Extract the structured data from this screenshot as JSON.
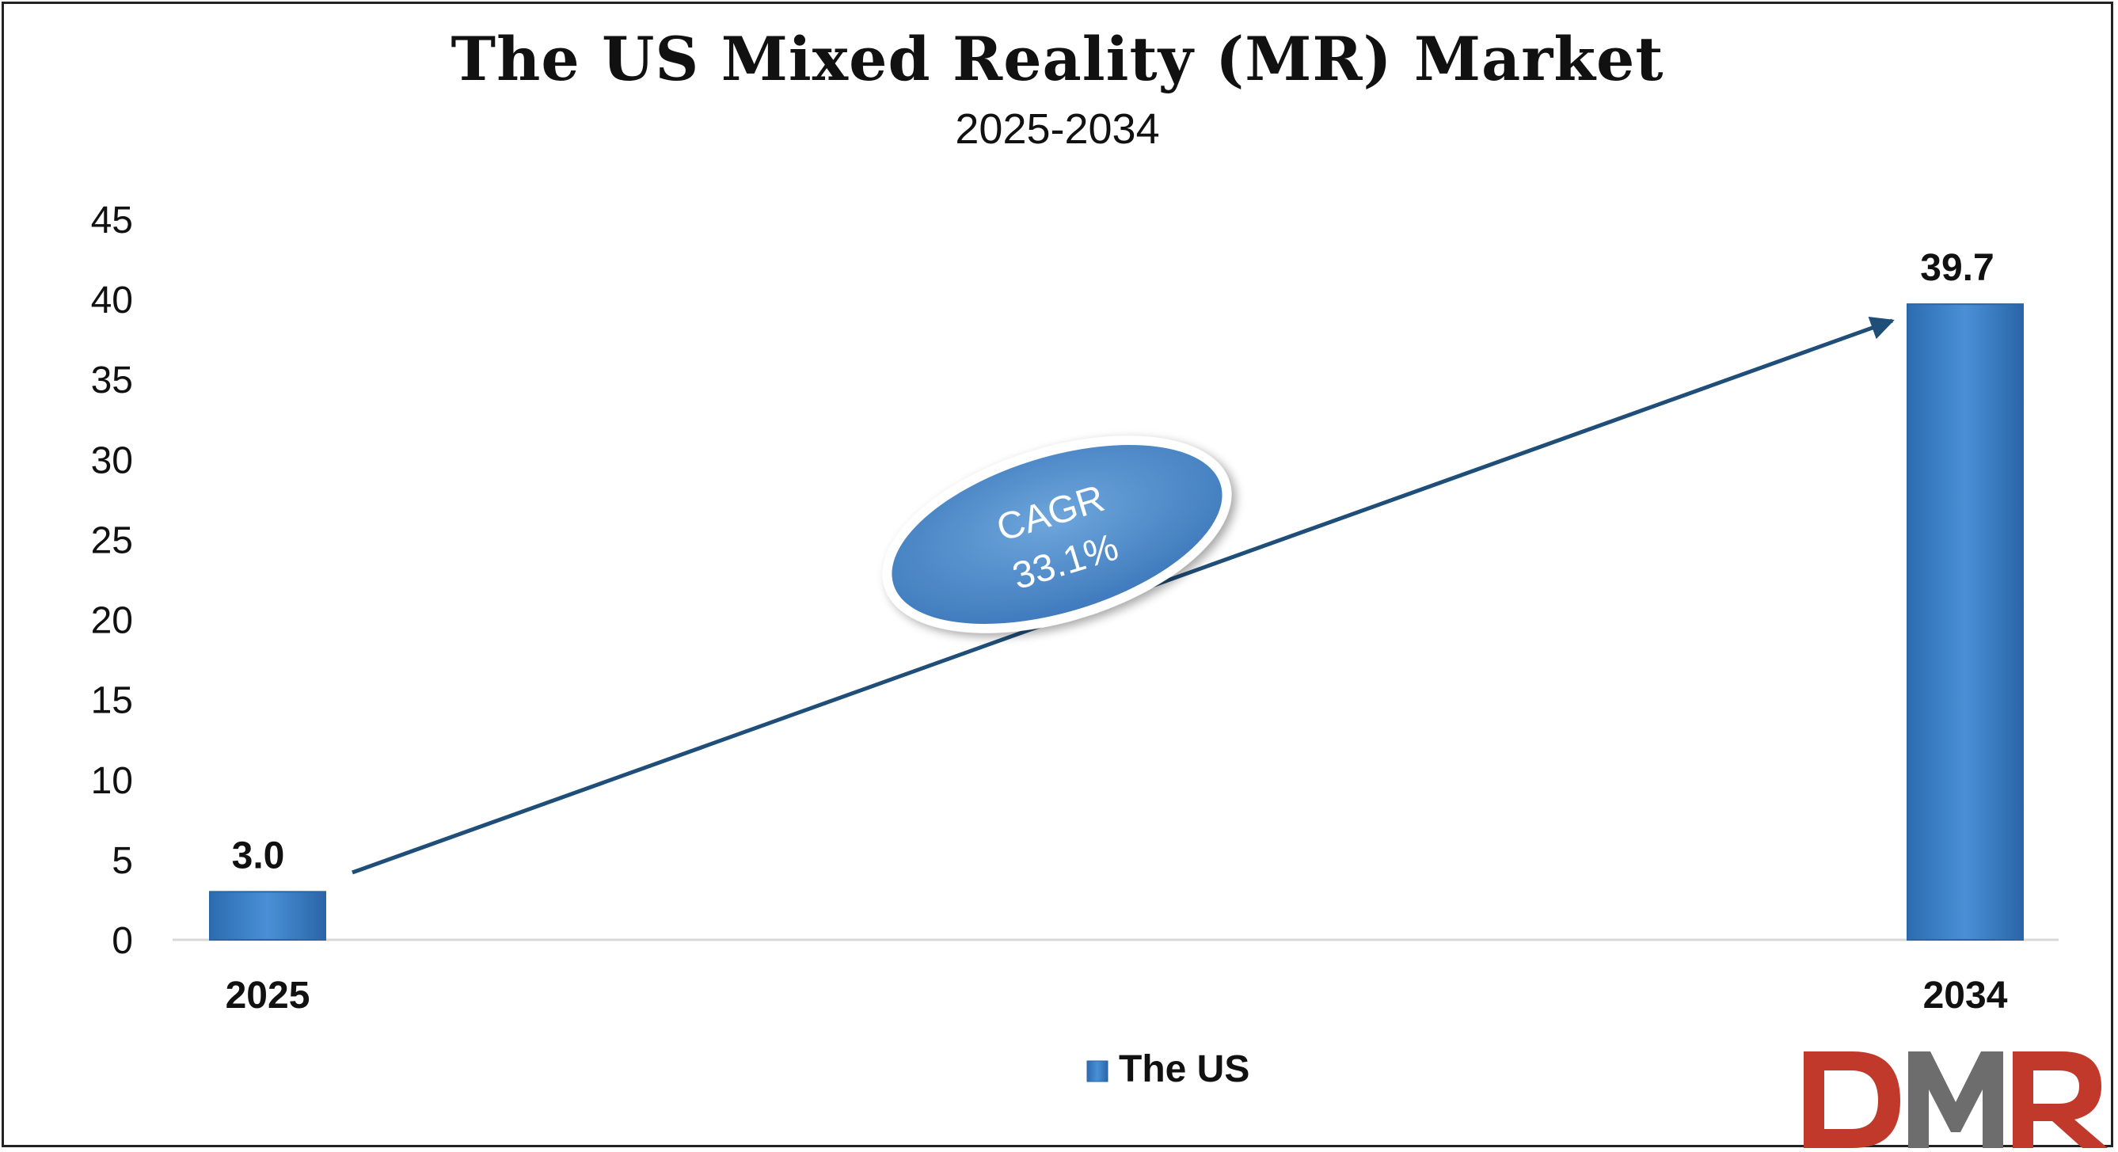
{
  "chart_data": {
    "type": "bar",
    "title": "The US Mixed Reality (MR) Market",
    "subtitle": "2025-2034",
    "categories": [
      "2025",
      "2034"
    ],
    "series": [
      {
        "name": "The US",
        "values": [
          3.0,
          39.7
        ],
        "data_labels": [
          "3.0",
          "39.7"
        ]
      }
    ],
    "ylim": [
      0,
      45
    ],
    "yticks": [
      0,
      5,
      10,
      15,
      20,
      25,
      30,
      35,
      40,
      45
    ],
    "grid": false,
    "legend_position": "bottom",
    "annotation": {
      "line1": "CAGR",
      "line2": "33.1%"
    },
    "colors": {
      "bar": "#3a7fc6",
      "arrow": "#1f4e79",
      "ellipse": "#4a86c5"
    }
  },
  "logo": {
    "text": "DMR",
    "colors": {
      "d": "#c0392b",
      "m": "#6d6d6d",
      "r": "#c0392b"
    }
  }
}
